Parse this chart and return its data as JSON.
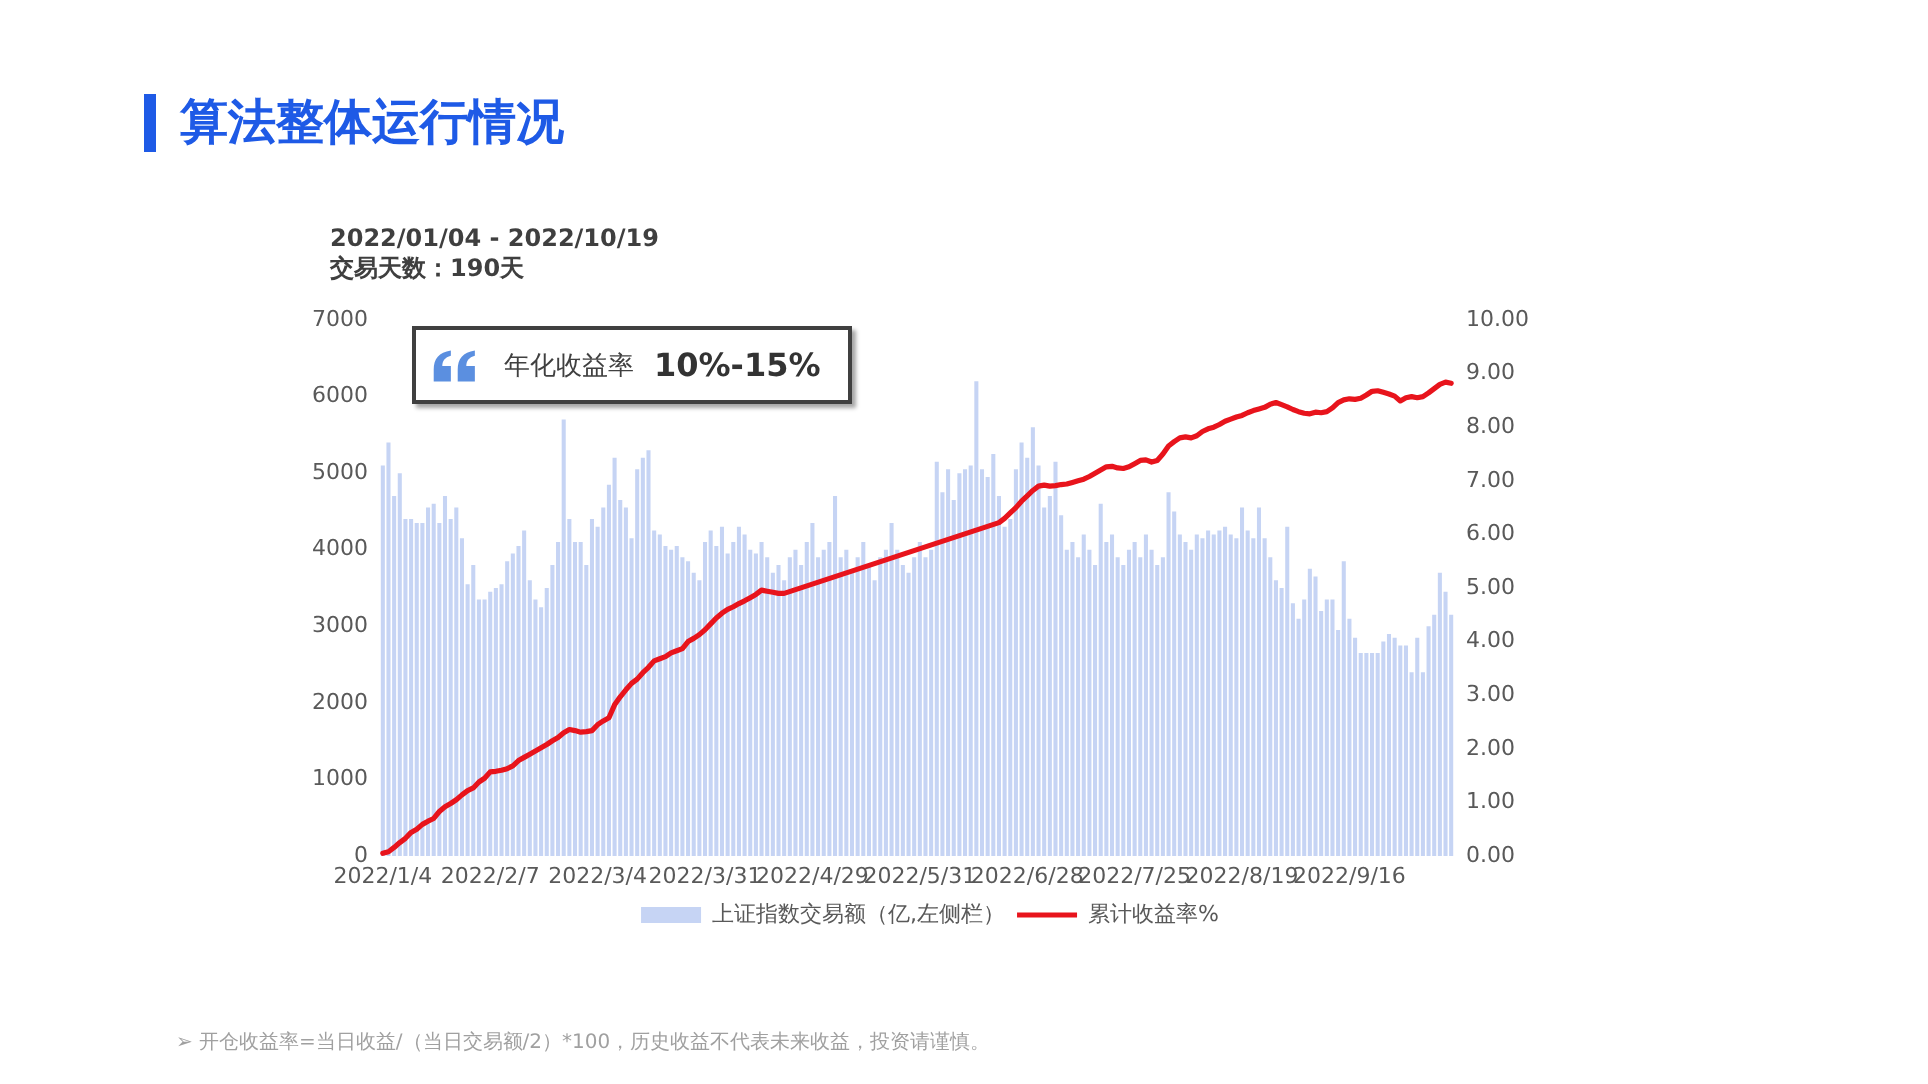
{
  "chart_data": {
    "type": "bar",
    "title": "算法整体运行情况",
    "subtitle": "2022/01/04 - 2022/10/19",
    "annotations": [
      "交易天数：190天",
      "年化收益率",
      "10%-15%",
      "➢ 开仓收益率=当日收益/（当日交易额/2）*100，历史收益不代表未来收益，投资请谨慎。"
    ],
    "categories": [
      "2022/1/4",
      null,
      null,
      null,
      null,
      null,
      null,
      null,
      null,
      null,
      null,
      null,
      null,
      null,
      null,
      null,
      null,
      null,
      null,
      "2022/2/7",
      null,
      null,
      null,
      null,
      null,
      null,
      null,
      null,
      null,
      null,
      null,
      null,
      null,
      null,
      null,
      null,
      null,
      null,
      "2022/3/4",
      null,
      null,
      null,
      null,
      null,
      null,
      null,
      null,
      null,
      null,
      null,
      null,
      null,
      null,
      null,
      null,
      null,
      null,
      "2022/3/31",
      null,
      null,
      null,
      null,
      null,
      null,
      null,
      null,
      null,
      null,
      null,
      null,
      null,
      null,
      null,
      null,
      null,
      null,
      "2022/4/29",
      null,
      null,
      null,
      null,
      null,
      null,
      null,
      null,
      null,
      null,
      null,
      null,
      null,
      null,
      null,
      null,
      null,
      null,
      "2022/5/31",
      null,
      null,
      null,
      null,
      null,
      null,
      null,
      null,
      null,
      null,
      null,
      null,
      null,
      null,
      null,
      null,
      null,
      null,
      "2022/6/28",
      null,
      null,
      null,
      null,
      null,
      null,
      null,
      null,
      null,
      null,
      null,
      null,
      null,
      null,
      null,
      null,
      null,
      null,
      "2022/7/25",
      null,
      null,
      null,
      null,
      null,
      null,
      null,
      null,
      null,
      null,
      null,
      null,
      null,
      null,
      null,
      null,
      null,
      null,
      "2022/8/19",
      null,
      null,
      null,
      null,
      null,
      null,
      null,
      null,
      null,
      null,
      null,
      null,
      null,
      null,
      null,
      null,
      null,
      null,
      "2022/9/16",
      null,
      null,
      null,
      null,
      null,
      null,
      null,
      null,
      null,
      null,
      null,
      null,
      null,
      null,
      null,
      null,
      null,
      null
    ],
    "series": [
      {
        "name": "上证指数交易额（亿,左侧栏）",
        "type": "bar",
        "color": "#c6d4f4",
        "values": [
          5100,
          5400,
          4700,
          5000,
          4400,
          4400,
          4350,
          4350,
          4550,
          4600,
          4350,
          4700,
          4400,
          4550,
          4150,
          3550,
          3800,
          3350,
          3350,
          3450,
          3500,
          3550,
          3850,
          3950,
          4050,
          4250,
          3600,
          3350,
          3250,
          3500,
          3800,
          4100,
          5700,
          4400,
          4100,
          4100,
          3800,
          4400,
          4300,
          4550,
          4850,
          5200,
          4650,
          4550,
          4150,
          5050,
          5200,
          5300,
          4250,
          4200,
          4050,
          4000,
          4050,
          3900,
          3850,
          3700,
          3600,
          4100,
          4250,
          4050,
          4300,
          3950,
          4100,
          4300,
          4200,
          4000,
          3950,
          4100,
          3900,
          3700,
          3800,
          3600,
          3900,
          4000,
          3800,
          4100,
          4350,
          3900,
          4000,
          4100,
          4700,
          3900,
          4000,
          3700,
          3900,
          4100,
          3800,
          3600,
          3900,
          4000,
          4350,
          4000,
          3800,
          3700,
          3900,
          4100,
          3900,
          4000,
          5150,
          4750,
          5050,
          4650,
          5000,
          5050,
          5100,
          6200,
          5050,
          4950,
          5250,
          4700,
          4300,
          4400,
          5050,
          5400,
          5200,
          5600,
          5100,
          4550,
          4700,
          5150,
          4450,
          4000,
          4100,
          3900,
          4200,
          4000,
          3800,
          4600,
          4100,
          4200,
          3900,
          3800,
          4000,
          4100,
          3900,
          4200,
          4000,
          3800,
          3900,
          4750,
          4500,
          4200,
          4100,
          4000,
          4200,
          4150,
          4250,
          4200,
          4250,
          4300,
          4200,
          4150,
          4550,
          4250,
          4150,
          4550,
          4150,
          3900,
          3600,
          3500,
          4300,
          3300,
          3100,
          3350,
          3750,
          3650,
          3200,
          3350,
          3350,
          2950,
          3850,
          3100,
          2850,
          2650,
          2650,
          2650,
          2650,
          2800,
          2900,
          2850,
          2750,
          2750,
          2400,
          2850,
          2400,
          3000,
          3150,
          3700,
          3450,
          3150
        ]
      },
      {
        "name": "累计收益率%",
        "type": "line",
        "axis": "y2",
        "color": "#e8141c",
        "marker": "none",
        "values": [
          0.05,
          0.08,
          0.16,
          0.25,
          0.33,
          0.44,
          0.5,
          0.59,
          0.65,
          0.7,
          0.83,
          0.92,
          0.98,
          1.05,
          1.14,
          1.22,
          1.27,
          1.38,
          1.45,
          1.57,
          1.58,
          1.6,
          1.63,
          1.68,
          1.78,
          1.84,
          1.9,
          1.96,
          2.02,
          2.08,
          2.15,
          2.21,
          2.3,
          2.36,
          2.34,
          2.31,
          2.32,
          2.34,
          2.45,
          2.52,
          2.58,
          2.82,
          2.97,
          3.1,
          3.22,
          3.3,
          3.42,
          3.52,
          3.64,
          3.68,
          3.72,
          3.79,
          3.83,
          3.87,
          4.0,
          4.06,
          4.13,
          4.22,
          4.33,
          4.44,
          4.53,
          4.6,
          4.65,
          4.71,
          4.76,
          4.82,
          4.88,
          4.96,
          4.94,
          4.92,
          4.9,
          4.9,
          null,
          null,
          null,
          null,
          null,
          null,
          null,
          null,
          null,
          null,
          null,
          null,
          null,
          null,
          null,
          null,
          null,
          null,
          null,
          null,
          null,
          null,
          null,
          null,
          null,
          null,
          null,
          null,
          null,
          null,
          null,
          null,
          null,
          null,
          null,
          null,
          null,
          6.22,
          6.3,
          6.4,
          6.5,
          6.62,
          6.72,
          6.82,
          6.9,
          6.92,
          6.9,
          6.91,
          6.93,
          6.94,
          6.97,
          7.0,
          7.03,
          7.08,
          7.14,
          7.2,
          7.26,
          7.27,
          7.24,
          7.23,
          7.26,
          7.32,
          7.38,
          7.39,
          7.35,
          7.38,
          7.5,
          7.65,
          7.73,
          7.8,
          7.82,
          7.8,
          7.84,
          7.92,
          7.97,
          8.0,
          8.05,
          8.11,
          8.15,
          8.19,
          8.22,
          8.27,
          8.31,
          8.34,
          8.37,
          8.43,
          8.46,
          8.42,
          8.38,
          8.33,
          8.29,
          8.26,
          8.25,
          8.28,
          8.27,
          8.29,
          8.36,
          8.46,
          8.51,
          8.53,
          8.52,
          8.54,
          8.6,
          8.67,
          8.68,
          8.65,
          8.62,
          8.58,
          8.49,
          8.55,
          8.57,
          8.55,
          8.57,
          8.64,
          8.72,
          8.8,
          8.84,
          8.82
        ]
      }
    ],
    "ylim": [
      0,
      7000
    ],
    "yticks": [
      0,
      1000,
      2000,
      3000,
      4000,
      5000,
      6000,
      7000
    ],
    "y2lim": [
      0,
      10
    ],
    "y2ticks": [
      {
        "value": 0,
        "label": "0.00"
      },
      {
        "value": 1,
        "label": "1.00"
      },
      {
        "value": 2,
        "label": "2.00"
      },
      {
        "value": 3,
        "label": "3.00"
      },
      {
        "value": 4,
        "label": "4.00"
      },
      {
        "value": 5,
        "label": "5.00"
      },
      {
        "value": 6,
        "label": "6.00"
      },
      {
        "value": 7,
        "label": "7.00"
      },
      {
        "value": 8,
        "label": "8.00"
      },
      {
        "value": 9,
        "label": "9.00"
      },
      {
        "value": 10,
        "label": "10.00"
      }
    ],
    "legend": "bottom"
  }
}
